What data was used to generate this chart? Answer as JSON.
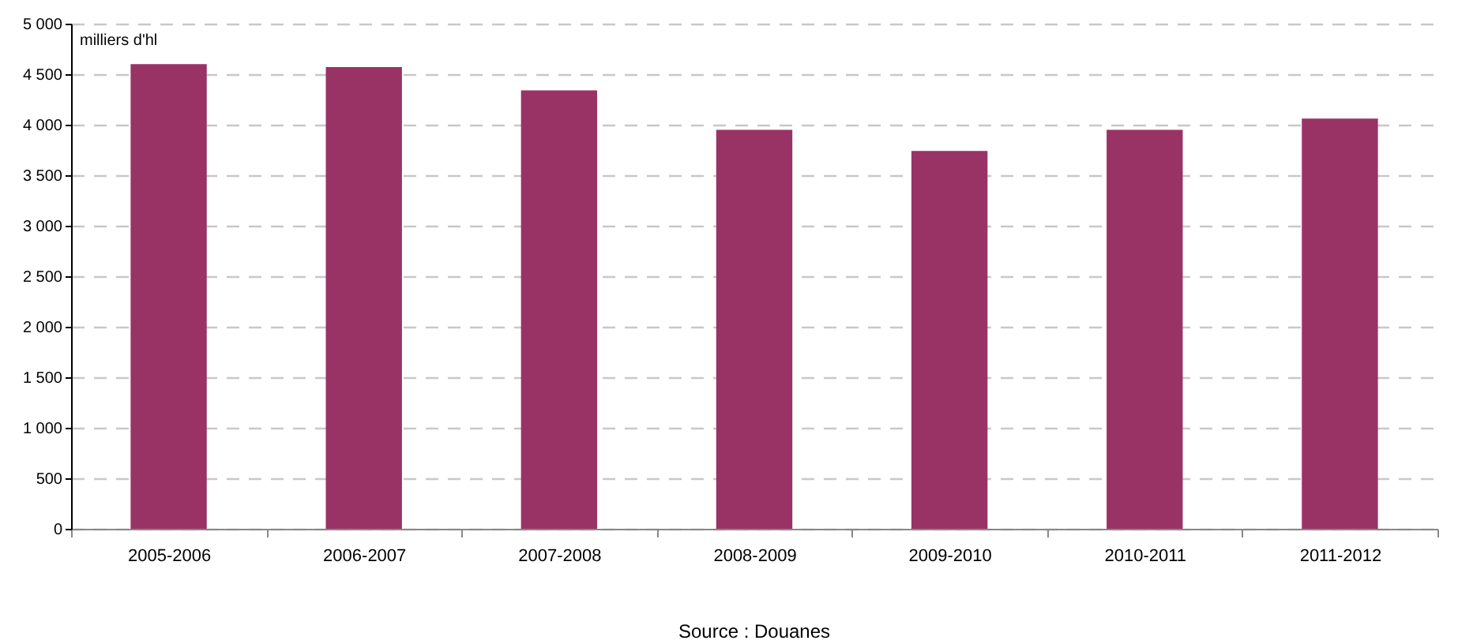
{
  "chart_data": {
    "type": "bar",
    "ylabel": "milliers d'hl",
    "categories": [
      "2005-2006",
      "2006-2007",
      "2007-2008",
      "2008-2009",
      "2009-2010",
      "2010-2011",
      "2011-2012"
    ],
    "values": [
      4600,
      4570,
      4340,
      3950,
      3740,
      3950,
      4060
    ],
    "color": "#993366",
    "ylim": [
      0,
      5000
    ],
    "yticks": [
      {
        "value": 0,
        "label": "0"
      },
      {
        "value": 500,
        "label": "500"
      },
      {
        "value": 1000,
        "label": "1 000"
      },
      {
        "value": 1500,
        "label": "1 500"
      },
      {
        "value": 2000,
        "label": "2 000"
      },
      {
        "value": 2500,
        "label": "2 500"
      },
      {
        "value": 3000,
        "label": "3 000"
      },
      {
        "value": 3500,
        "label": "3 500"
      },
      {
        "value": 4000,
        "label": "4 000"
      },
      {
        "value": 4500,
        "label": "4 500"
      },
      {
        "value": 5000,
        "label": "5 000"
      }
    ],
    "grid": "y",
    "annotations": [
      "Source :  Douanes"
    ]
  }
}
